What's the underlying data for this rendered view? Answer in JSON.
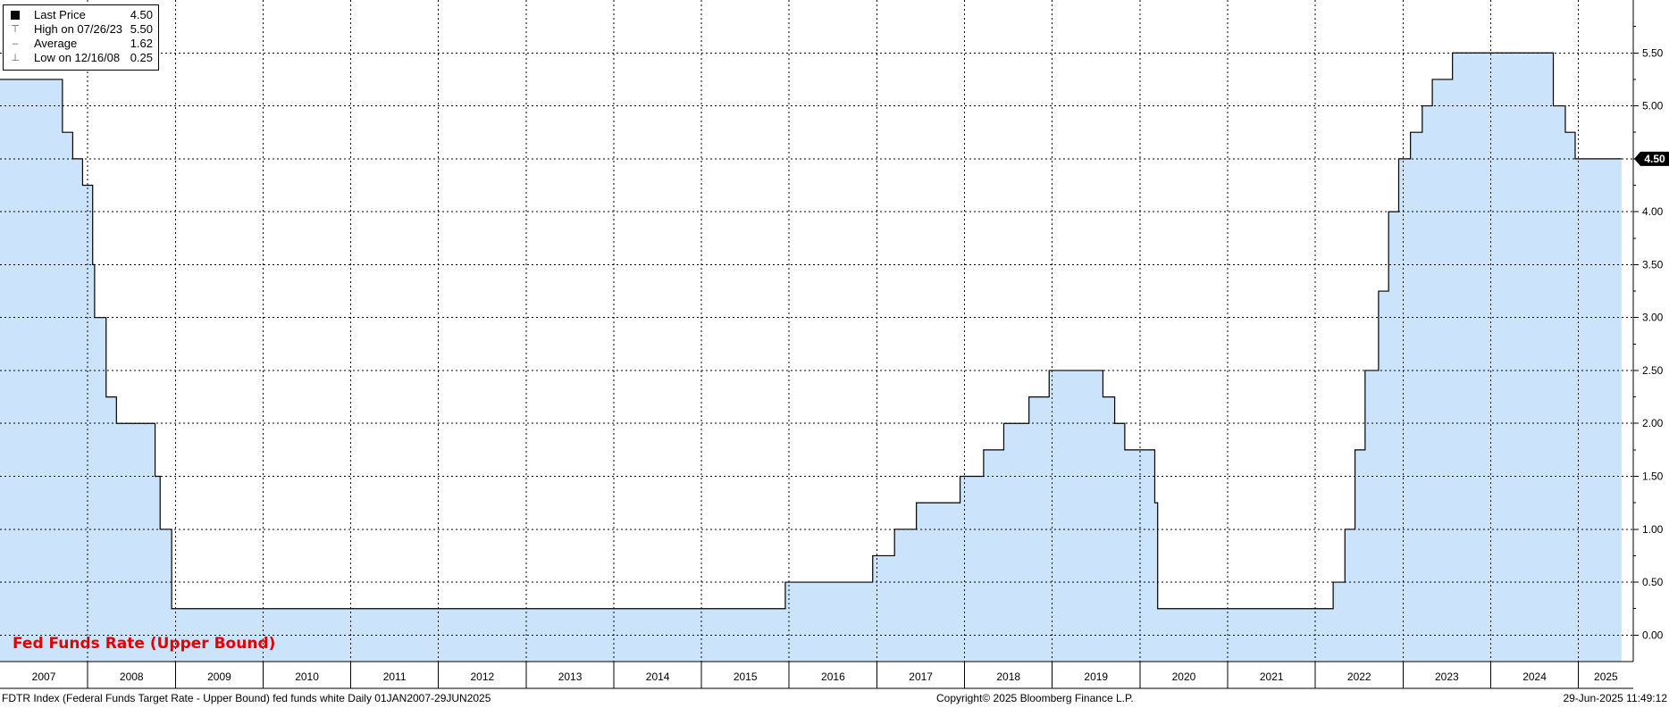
{
  "chart_data": {
    "type": "area",
    "title": "Fed Funds Rate (Upper Bound)",
    "series": [
      {
        "name": "FDTR Index",
        "points": [
          [
            "2007-01-01",
            5.25
          ],
          [
            "2007-09-18",
            4.75
          ],
          [
            "2007-10-31",
            4.5
          ],
          [
            "2007-12-11",
            4.25
          ],
          [
            "2008-01-22",
            3.5
          ],
          [
            "2008-01-30",
            3.0
          ],
          [
            "2008-03-18",
            2.25
          ],
          [
            "2008-04-30",
            2.0
          ],
          [
            "2008-10-08",
            1.5
          ],
          [
            "2008-10-29",
            1.0
          ],
          [
            "2008-12-16",
            0.25
          ],
          [
            "2015-12-16",
            0.5
          ],
          [
            "2016-12-14",
            0.75
          ],
          [
            "2017-03-15",
            1.0
          ],
          [
            "2017-06-14",
            1.25
          ],
          [
            "2017-12-13",
            1.5
          ],
          [
            "2018-03-21",
            1.75
          ],
          [
            "2018-06-13",
            2.0
          ],
          [
            "2018-09-26",
            2.25
          ],
          [
            "2018-12-19",
            2.5
          ],
          [
            "2019-07-31",
            2.25
          ],
          [
            "2019-09-18",
            2.0
          ],
          [
            "2019-10-30",
            1.75
          ],
          [
            "2020-03-03",
            1.25
          ],
          [
            "2020-03-15",
            0.25
          ],
          [
            "2022-03-16",
            0.5
          ],
          [
            "2022-05-04",
            1.0
          ],
          [
            "2022-06-15",
            1.75
          ],
          [
            "2022-07-27",
            2.5
          ],
          [
            "2022-09-21",
            3.25
          ],
          [
            "2022-11-02",
            4.0
          ],
          [
            "2022-12-14",
            4.5
          ],
          [
            "2023-02-01",
            4.75
          ],
          [
            "2023-03-22",
            5.0
          ],
          [
            "2023-05-03",
            5.25
          ],
          [
            "2023-07-26",
            5.5
          ],
          [
            "2024-09-18",
            5.0
          ],
          [
            "2024-11-07",
            4.75
          ],
          [
            "2024-12-18",
            4.5
          ],
          [
            "2025-06-29",
            4.5
          ]
        ]
      }
    ],
    "x_range": [
      "2007-01-01",
      "2025-08-17"
    ],
    "x_tick_labels": [
      "2007",
      "2008",
      "2009",
      "2010",
      "2011",
      "2012",
      "2013",
      "2014",
      "2015",
      "2016",
      "2017",
      "2018",
      "2019",
      "2020",
      "2021",
      "2022",
      "2023",
      "2024",
      "2025"
    ],
    "y_ticks": [
      "0.00",
      "0.50",
      "1.00",
      "1.50",
      "2.00",
      "2.50",
      "3.00",
      "3.50",
      "4.00",
      "4.50",
      "5.00",
      "5.50"
    ],
    "ylim": [
      -0.25,
      6.0
    ],
    "y_axis_position": "right",
    "grid": true,
    "last_price_tag": "4.50",
    "legend_placement": "top-left",
    "legend": [
      {
        "label": "Last Price",
        "value": "4.50",
        "marker": "filled-square-icon"
      },
      {
        "label": "High on 07/26/23",
        "value": "5.50",
        "marker": "high-marker-icon"
      },
      {
        "label": "Average",
        "value": "1.62",
        "marker": "average-marker-icon"
      },
      {
        "label": "Low on 12/16/08",
        "value": "0.25",
        "marker": "low-marker-icon"
      }
    ],
    "colors": {
      "fill": "#cce4fb",
      "line": "#000000",
      "grid": "#000000",
      "tag_bg": "#000000",
      "tag_text": "#ffffff",
      "title": "#e00000"
    }
  },
  "footer": {
    "left": "FDTR Index (Federal Funds Target Rate - Upper Bound) fed funds white  Daily 01JAN2007-29JUN2025",
    "center": "Copyright© 2025 Bloomberg Finance L.P.",
    "right": "29-Jun-2025 11:49:12"
  }
}
